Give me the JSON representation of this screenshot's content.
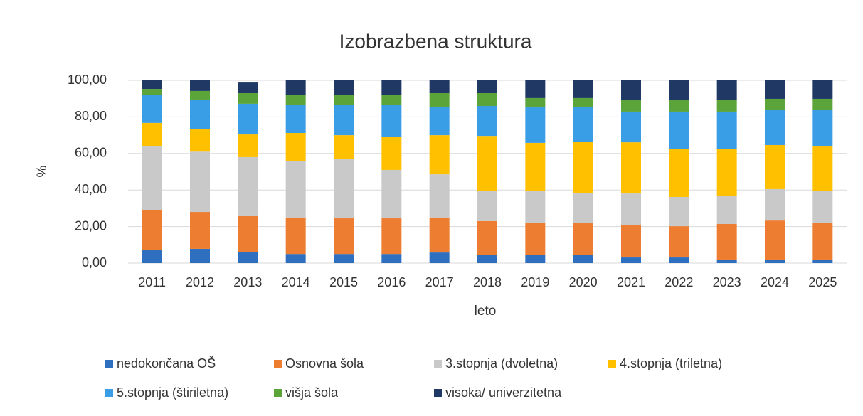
{
  "chart_data": {
    "type": "stacked-bar",
    "title": "Izobrazbena struktura",
    "x_label": "leto",
    "y_label": "%",
    "categories": [
      "2011",
      "2012",
      "2013",
      "2014",
      "2015",
      "2016",
      "2017",
      "2018",
      "2019",
      "2020",
      "2021",
      "2022",
      "2023",
      "2024",
      "2025"
    ],
    "series": [
      {
        "name": "nedokončana OŠ",
        "color": "#2e6fc0",
        "values": [
          7.0,
          7.8,
          6.2,
          5.0,
          5.0,
          5.0,
          5.8,
          4.3,
          4.3,
          4.3,
          3.1,
          3.1,
          1.9,
          1.9,
          1.9
        ]
      },
      {
        "name": "Osnovna šola",
        "color": "#ed7d31",
        "values": [
          21.8,
          20.2,
          19.5,
          20.0,
          19.5,
          19.5,
          19.2,
          18.7,
          17.9,
          17.5,
          17.9,
          17.1,
          19.5,
          21.4,
          20.3
        ]
      },
      {
        "name": "3.stopnja (dvoletna)",
        "color": "#c9c9c9",
        "values": [
          35.0,
          33.0,
          32.3,
          31.0,
          32.3,
          26.5,
          23.6,
          16.7,
          17.5,
          16.7,
          17.1,
          16.0,
          15.2,
          17.2,
          17.1
        ]
      },
      {
        "name": "4.stopnja (triletna)",
        "color": "#ffc000",
        "values": [
          12.9,
          12.5,
          12.4,
          15.2,
          13.2,
          17.9,
          21.4,
          29.9,
          26.1,
          28.0,
          28.0,
          26.4,
          26.0,
          24.1,
          24.5
        ]
      },
      {
        "name": "5.stopnja (štiriletna)",
        "color": "#3a9ee6",
        "values": [
          15.5,
          16.0,
          16.8,
          15.2,
          16.4,
          17.5,
          15.6,
          16.4,
          19.4,
          19.1,
          16.8,
          20.3,
          20.3,
          19.1,
          19.9
        ]
      },
      {
        "name": "višja šola",
        "color": "#5aa43a",
        "values": [
          3.1,
          4.7,
          5.8,
          5.8,
          5.8,
          5.8,
          7.4,
          7.0,
          5.1,
          4.7,
          6.2,
          6.2,
          6.6,
          6.2,
          6.2
        ]
      },
      {
        "name": "visoka/ univerzitetna",
        "color": "#1f3864",
        "values": [
          4.7,
          5.8,
          5.8,
          7.8,
          7.8,
          7.8,
          7.0,
          7.0,
          9.7,
          9.7,
          10.9,
          10.9,
          10.5,
          10.1,
          10.1
        ]
      }
    ],
    "ylim": [
      0,
      100
    ],
    "yticks": [
      {
        "value": 0,
        "label": "0,00"
      },
      {
        "value": 20,
        "label": "20,00"
      },
      {
        "value": 40,
        "label": "40,00"
      },
      {
        "value": 60,
        "label": "60,00"
      },
      {
        "value": 80,
        "label": "80,00"
      },
      {
        "value": 100,
        "label": "100,00"
      }
    ],
    "grid": true,
    "legend": "bottom"
  }
}
